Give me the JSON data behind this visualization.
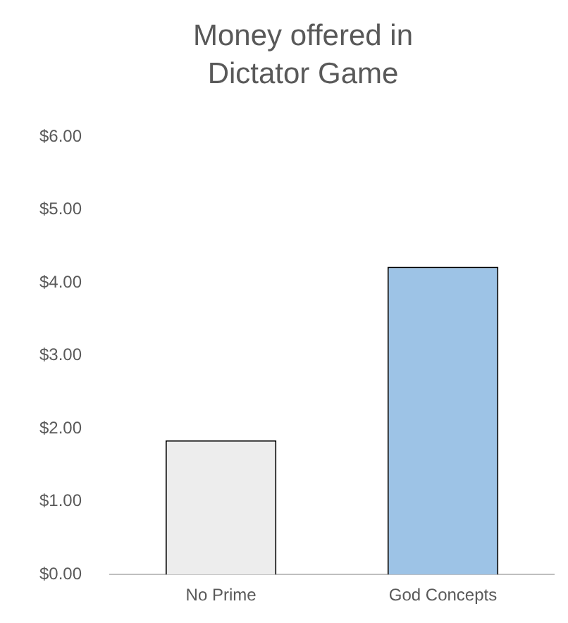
{
  "chart_data": {
    "type": "bar",
    "title": "Money offered in Dictator Game",
    "categories": [
      "No Prime",
      "God Concepts"
    ],
    "values": [
      1.84,
      4.22
    ],
    "colors": [
      "#ededed",
      "#9dc3e6"
    ],
    "ylim": [
      0,
      6
    ],
    "yticks": [
      {
        "value": 0,
        "label": "$0.00"
      },
      {
        "value": 1,
        "label": "$1.00"
      },
      {
        "value": 2,
        "label": "$2.00"
      },
      {
        "value": 3,
        "label": "$3.00"
      },
      {
        "value": 4,
        "label": "$4.00"
      },
      {
        "value": 5,
        "label": "$5.00"
      },
      {
        "value": 6,
        "label": "$6.00"
      }
    ],
    "grid": false,
    "legend": false
  }
}
